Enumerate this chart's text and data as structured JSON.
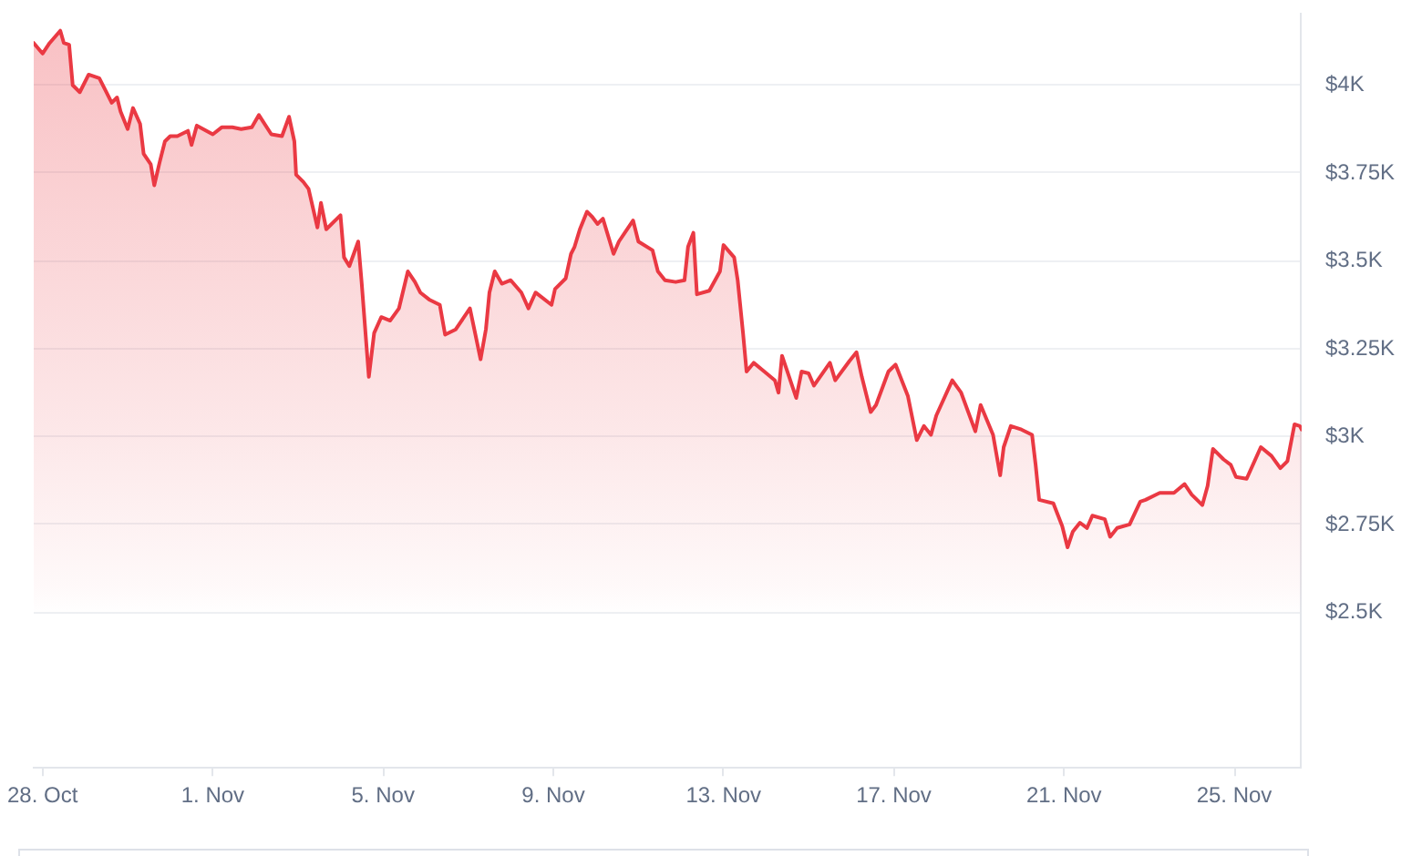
{
  "chart_data": {
    "type": "area",
    "color": "#ea3943",
    "marker": "none",
    "line_style": "solid",
    "grid": "y",
    "legend": false,
    "xlim": [
      "--10-27T19:00",
      "--11-26T14:00"
    ],
    "xticks": [
      {
        "value": "--10-28",
        "label": "28. Oct"
      },
      {
        "value": "--11-01",
        "label": "1. Nov"
      },
      {
        "value": "--11-05",
        "label": "5. Nov"
      },
      {
        "value": "--11-09",
        "label": "9. Nov"
      },
      {
        "value": "--11-13",
        "label": "13. Nov"
      },
      {
        "value": "--11-17",
        "label": "17. Nov"
      },
      {
        "value": "--11-21",
        "label": "21. Nov"
      },
      {
        "value": "--11-25",
        "label": "25. Nov"
      }
    ],
    "ylim": [
      2060,
      4205
    ],
    "yticks": [
      {
        "value": 2500,
        "label": "$2.5K"
      },
      {
        "value": 2750,
        "label": "$2.75K"
      },
      {
        "value": 3000,
        "label": "$3K"
      },
      {
        "value": 3250,
        "label": "$3.25K"
      },
      {
        "value": 3500,
        "label": "$3.5K"
      },
      {
        "value": 3750,
        "label": "$3.75K"
      },
      {
        "value": 4000,
        "label": "$4K"
      }
    ],
    "x": [
      "--10-27T19:00",
      "--10-28T00:00",
      "--10-28T04:00",
      "--10-28T10:00",
      "--10-28T12:00",
      "--10-28T15:00",
      "--10-28T17:00",
      "--10-28T21:00",
      "--10-29T02:00",
      "--10-29T08:00",
      "--10-29T11:00",
      "--10-29T15:00",
      "--10-29T18:00",
      "--10-29T20:00",
      "--10-30T00:00",
      "--10-30T03:00",
      "--10-30T07:00",
      "--10-30T09:00",
      "--10-30T13:00",
      "--10-30T15:00",
      "--10-30T18:00",
      "--10-30T21:00",
      "--10-31T00:00",
      "--10-31T04:00",
      "--10-31T10:00",
      "--10-31T12:00",
      "--10-31T15:00",
      "--11-01T00:00",
      "--11-01T05:00",
      "--11-01T11:00",
      "--11-01T16:00",
      "--11-01T22:00",
      "--11-02T02:00",
      "--11-02T09:00",
      "--11-02T15:00",
      "--11-02T19:00",
      "--11-02T22:00",
      "--11-02T23:00",
      "--11-03T03:00",
      "--11-03T06:00",
      "--11-03T11:00",
      "--11-03T13:00",
      "--11-03T16:00",
      "--11-04T00:00",
      "--11-04T02:00",
      "--11-04T05:00",
      "--11-04T10:00",
      "--11-04T12:00",
      "--11-04T16:00",
      "--11-04T19:00",
      "--11-04T23:00",
      "--11-05T04:00",
      "--11-05T09:00",
      "--11-05T14:00",
      "--11-05T18:00",
      "--11-05T21:00",
      "--11-06T02:00",
      "--11-06T08:00",
      "--11-06T11:00",
      "--11-06T17:00",
      "--11-07T01:00",
      "--11-07T07:00",
      "--11-07T10:00",
      "--11-07T12:00",
      "--11-07T15:00",
      "--11-07T19:00",
      "--11-08T00:00",
      "--11-08T06:00",
      "--11-08T10:00",
      "--11-08T14:00",
      "--11-08T23:00",
      "--11-09T01:00",
      "--11-09T07:00",
      "--11-09T10:00",
      "--11-09T12:00",
      "--11-09T15:00",
      "--11-09T19:00",
      "--11-09T22:00",
      "--11-10T01:00",
      "--11-10T04:00",
      "--11-10T10:00",
      "--11-10T13:00",
      "--11-10T21:00",
      "--11-11T00:00",
      "--11-11T08:00",
      "--11-11T11:00",
      "--11-11T15:00",
      "--11-11T21:00",
      "--11-12T02:00",
      "--11-12T04:00",
      "--11-12T07:00",
      "--11-12T09:00",
      "--11-12T16:00",
      "--11-12T22:00",
      "--11-13T00:00",
      "--11-13T06:00",
      "--11-13T08:00",
      "--11-13T11:00",
      "--11-13T13:00",
      "--11-13T17:00",
      "--11-13T23:00",
      "--11-14T05:00",
      "--11-14T07:00",
      "--11-14T09:00",
      "--11-14T17:00",
      "--11-14T20:00",
      "--11-15T00:00",
      "--11-15T03:00",
      "--11-15T12:00",
      "--11-15T15:00",
      "--11-15T23:00",
      "--11-16T03:00",
      "--11-16T06:00",
      "--11-16T11:00",
      "--11-16T14:00",
      "--11-16T21:00",
      "--11-17T01:00",
      "--11-17T08:00",
      "--11-17T13:00",
      "--11-17T17:00",
      "--11-17T21:00",
      "--11-18T00:00",
      "--11-18T09:00",
      "--11-18T14:00",
      "--11-18T22:00",
      "--11-19T01:00",
      "--11-19T08:00",
      "--11-19T12:00",
      "--11-19T14:00",
      "--11-19T18:00",
      "--11-20T00:00",
      "--11-20T06:00",
      "--11-20T08:00",
      "--11-20T10:00",
      "--11-20T18:00",
      "--11-20T23:00",
      "--11-21T02:00",
      "--11-21T05:00",
      "--11-21T09:00",
      "--11-21T13:00",
      "--11-21T16:00",
      "--11-21T23:00",
      "--11-22T02:00",
      "--11-22T06:00",
      "--11-22T13:00",
      "--11-22T19:00",
      "--11-22T22:00",
      "--11-23T06:00",
      "--11-23T14:00",
      "--11-23T20:00",
      "--11-24T00:00",
      "--11-24T06:00",
      "--11-24T09:00",
      "--11-24T12:00",
      "--11-24T18:00",
      "--11-24T22:00",
      "--11-25T01:00",
      "--11-25T07:00",
      "--11-25T15:00",
      "--11-25T21:00",
      "--11-26T02:00",
      "--11-26T06:00",
      "--11-26T10:00",
      "--11-26T13:00",
      "--11-26T14:00"
    ],
    "values": [
      4120,
      4090,
      4120,
      4155,
      4120,
      4115,
      4000,
      3980,
      4030,
      4020,
      3990,
      3950,
      3965,
      3925,
      3875,
      3935,
      3890,
      3805,
      3775,
      3715,
      3780,
      3840,
      3855,
      3855,
      3870,
      3830,
      3885,
      3860,
      3880,
      3880,
      3875,
      3880,
      3915,
      3860,
      3855,
      3910,
      3840,
      3745,
      3725,
      3705,
      3595,
      3665,
      3590,
      3630,
      3510,
      3485,
      3555,
      3435,
      3170,
      3295,
      3340,
      3330,
      3365,
      3470,
      3440,
      3410,
      3390,
      3375,
      3290,
      3305,
      3365,
      3220,
      3305,
      3410,
      3470,
      3435,
      3445,
      3410,
      3365,
      3410,
      3375,
      3420,
      3450,
      3520,
      3540,
      3590,
      3640,
      3625,
      3605,
      3620,
      3520,
      3555,
      3615,
      3555,
      3530,
      3470,
      3445,
      3440,
      3445,
      3540,
      3580,
      3405,
      3415,
      3470,
      3545,
      3510,
      3445,
      3295,
      3185,
      3210,
      3185,
      3160,
      3125,
      3230,
      3110,
      3185,
      3180,
      3145,
      3210,
      3160,
      3215,
      3240,
      3170,
      3070,
      3090,
      3185,
      3205,
      3115,
      2990,
      3030,
      3005,
      3060,
      3160,
      3125,
      3015,
      3090,
      3005,
      2890,
      2970,
      3030,
      3020,
      3005,
      2920,
      2820,
      2810,
      2745,
      2685,
      2730,
      2755,
      2740,
      2775,
      2765,
      2715,
      2740,
      2750,
      2815,
      2820,
      2840,
      2840,
      2865,
      2835,
      2805,
      2860,
      2965,
      2935,
      2920,
      2885,
      2880,
      2970,
      2945,
      2910,
      2930,
      3035,
      3030,
      3020
    ]
  }
}
